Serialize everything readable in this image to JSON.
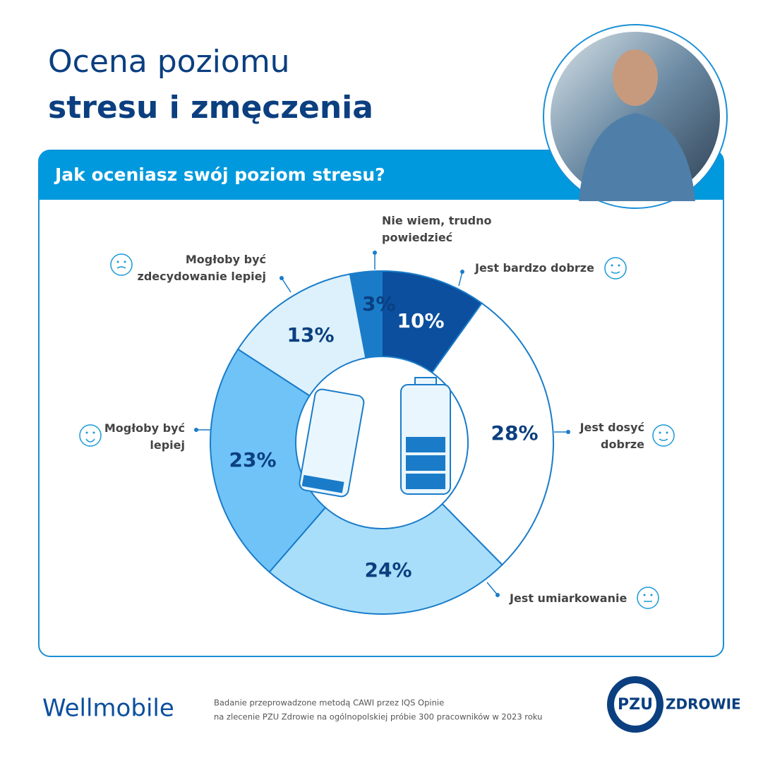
{
  "header": {
    "title_line1": "Ocena poziomu",
    "title_line2": "stresu i zmęczenia"
  },
  "chart_data": {
    "type": "donut",
    "title": "Jak oceniasz swój poziom stresu?",
    "categories": [
      "Jest bardzo dobrze",
      "Jest dosyć dobrze",
      "Jest umiarkowanie",
      "Mogłoby być lepiej",
      "Mogłoby być zdecydowanie lepiej",
      "Nie wiem, trudno powiedzieć"
    ],
    "values": [
      10,
      28,
      24,
      23,
      13,
      3
    ],
    "value_labels": [
      "10%",
      "28%",
      "24%",
      "23%",
      "13%",
      "3%"
    ],
    "colors": [
      "#0b4f9e",
      "#ffffff",
      "#a9defa",
      "#6fc3f7",
      "#dcf1fc",
      "#1a7cc9"
    ]
  },
  "footer": {
    "brand": "Wellmobile",
    "note_line1": "Badanie przeprowadzone metodą CAWI przez IQS Opinie",
    "note_line2": "na zlecenie PZU Zdrowie na ogólnopolskiej próbie 300 pracowników w 2023 roku",
    "logo_mark": "PZU",
    "logo_text": "ZDROWIE"
  }
}
